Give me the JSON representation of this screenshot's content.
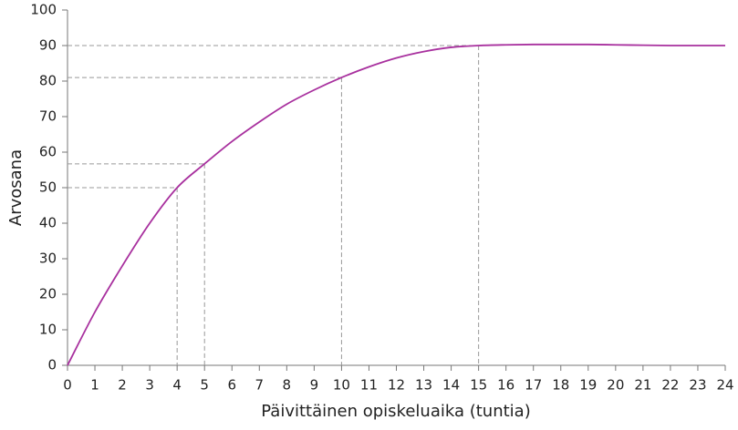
{
  "chart_data": {
    "type": "line",
    "x_label": "Päivittäinen opiskeluaika (tuntia)",
    "y_label": "Arvosana",
    "x": [
      0,
      1,
      2,
      3,
      4,
      5,
      6,
      7,
      8,
      9,
      10,
      11,
      12,
      13,
      14,
      15,
      16,
      17,
      18,
      19,
      20,
      21,
      22,
      23,
      24
    ],
    "series": [
      {
        "color": "#a8309e",
        "values": [
          0,
          15,
          28,
          40,
          50,
          56.7,
          63,
          68.5,
          73.5,
          77.5,
          81,
          84,
          86.5,
          88.3,
          89.5,
          90,
          90.2,
          90.3,
          90.3,
          90.3,
          90.2,
          90.1,
          90,
          90,
          90
        ]
      }
    ],
    "reference_points": [
      {
        "x": 4,
        "y": 50
      },
      {
        "x": 5,
        "y": 56.7
      },
      {
        "x": 10,
        "y": 81
      },
      {
        "x": 15,
        "y": 90
      }
    ],
    "xlim": [
      0,
      24
    ],
    "ylim": [
      0,
      100
    ],
    "xticks": [
      0,
      1,
      2,
      3,
      4,
      5,
      6,
      7,
      8,
      9,
      10,
      11,
      12,
      13,
      14,
      15,
      16,
      17,
      18,
      19,
      20,
      21,
      22,
      23,
      24
    ],
    "yticks": [
      0,
      10,
      20,
      30,
      40,
      50,
      60,
      70,
      80,
      90,
      100
    ]
  }
}
